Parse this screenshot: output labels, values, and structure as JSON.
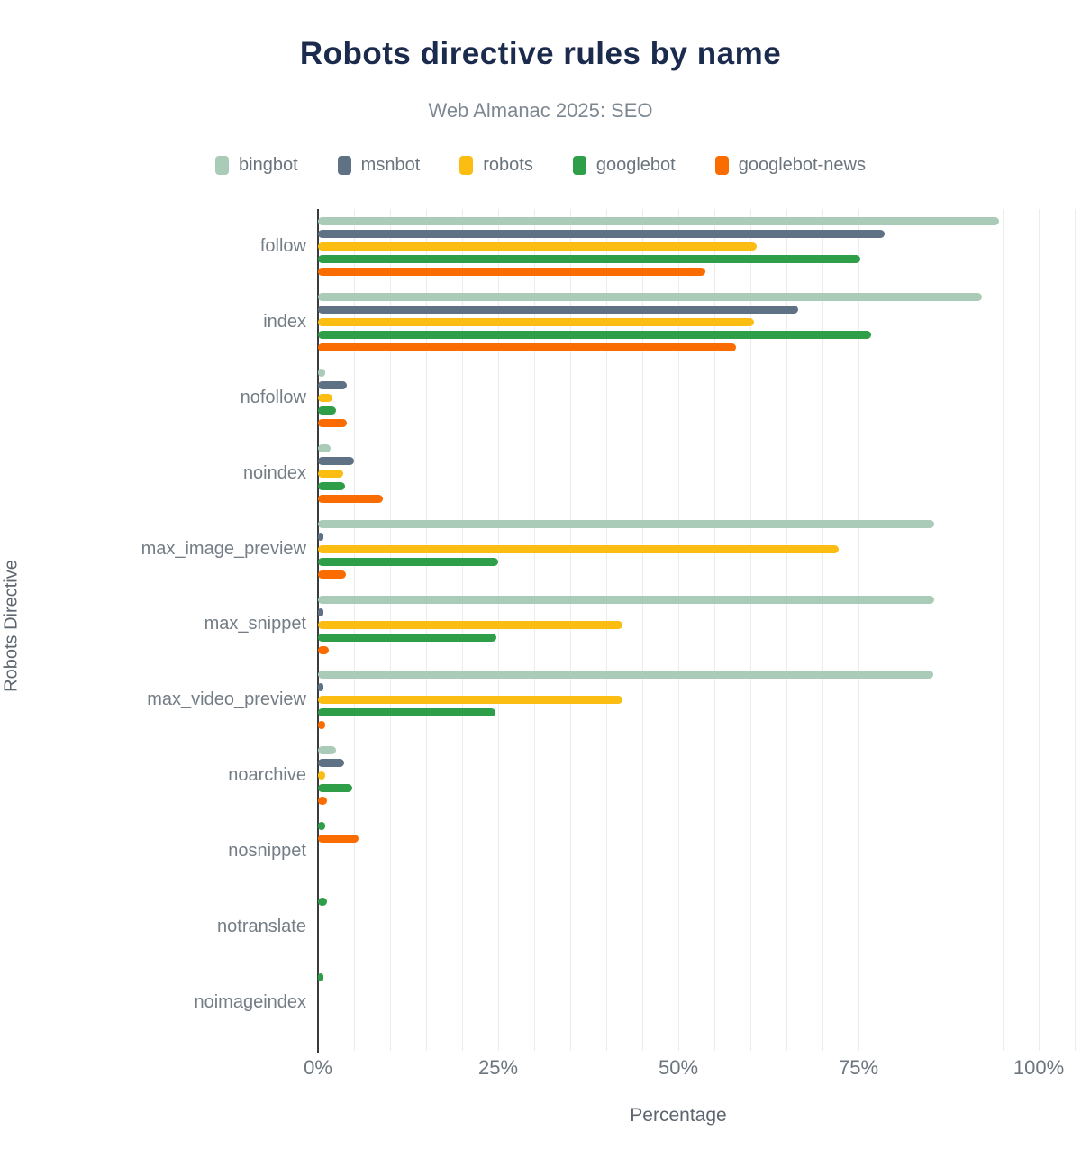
{
  "title": "Robots directive rules by name",
  "subtitle": "Web Almanac 2025: SEO",
  "chart_data": {
    "type": "bar",
    "orientation": "horizontal",
    "title": "Robots directive rules by name",
    "subtitle": "Web Almanac 2025: SEO",
    "xlabel": "Percentage",
    "ylabel": "Robots Directive",
    "xlim": [
      0,
      100
    ],
    "x_tick_labels": [
      "0%",
      "25%",
      "50%",
      "75%",
      "100%"
    ],
    "x_tick_values": [
      0,
      25,
      50,
      75,
      100
    ],
    "grid": "vertical minor gridlines every 5%",
    "legend_position": "top",
    "categories": [
      "follow",
      "index",
      "nofollow",
      "noindex",
      "max_image_preview",
      "max_snippet",
      "max_video_preview",
      "noarchive",
      "nosnippet",
      "notranslate",
      "noimageindex"
    ],
    "series": [
      {
        "name": "bingbot",
        "color": "#a9cbb7",
        "values": [
          94.5,
          92.1,
          1.0,
          1.7,
          85.5,
          85.5,
          85.4,
          2.5,
          0,
          0,
          0
        ]
      },
      {
        "name": "msnbot",
        "color": "#5f7285",
        "values": [
          78.6,
          66.6,
          4.0,
          5.0,
          0.3,
          0.3,
          0.3,
          3.6,
          0,
          0,
          0
        ]
      },
      {
        "name": "robots",
        "color": "#fcbd13",
        "values": [
          60.9,
          60.5,
          2.0,
          3.5,
          72.3,
          42.3,
          42.2,
          1.0,
          0,
          0,
          0
        ]
      },
      {
        "name": "googlebot",
        "color": "#2f9e48",
        "values": [
          75.3,
          76.8,
          2.5,
          3.8,
          25.0,
          24.8,
          24.6,
          4.7,
          1.0,
          1.3,
          0.8
        ]
      },
      {
        "name": "googlebot-news",
        "color": "#fa6c00",
        "values": [
          53.8,
          58.0,
          4.0,
          9.0,
          3.9,
          1.5,
          1.0,
          1.3,
          5.6,
          0,
          0
        ]
      }
    ]
  },
  "colors": {
    "title": "#1b2b4d",
    "subtitle": "#7e8892",
    "axis_line": "#3a3b3d",
    "gridline": "#ececec",
    "label_gray": "#747d85"
  }
}
